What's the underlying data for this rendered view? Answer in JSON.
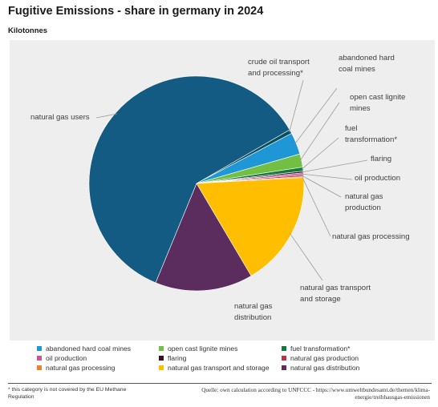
{
  "title": "Fugitive Emissions - share in germany in 2024",
  "subtitle": "Kilotonnes",
  "chart_data": {
    "type": "pie",
    "title": "Fugitive Emissions - share in germany in 2024",
    "unit": "Kilotonnes",
    "legend_position": "bottom",
    "categories": [
      "crude oil transport and processing*",
      "abandoned hard coal mines",
      "open cast lignite mines",
      "fuel transformation*",
      "flaring",
      "oil production",
      "natural gas production",
      "natural gas processing",
      "natural gas transport and storage",
      "natural gas distribution",
      "natural gas users"
    ],
    "slice_labels": [
      [
        "crude oil transport",
        "and processing*"
      ],
      [
        "abandoned hard",
        "coal mines"
      ],
      [
        "open cast lignite",
        "mines"
      ],
      [
        "fuel",
        "transformation*"
      ],
      [
        "flaring"
      ],
      [
        "oil production"
      ],
      [
        "natural gas",
        "production"
      ],
      [
        "natural gas processing"
      ],
      [
        "natural gas transport",
        "and storage"
      ],
      [
        "natural gas",
        "distribution"
      ],
      [
        "natural gas users"
      ]
    ],
    "values": [
      0.6,
      3.3,
      2.0,
      0.6,
      0.25,
      0.3,
      0.25,
      0.15,
      17.4,
      14.7,
      60.45
    ],
    "value_note": "approximate shares in percent, read from slice angles",
    "colors": [
      "#0a4e5a",
      "#1f96d6",
      "#72bf44",
      "#127a3a",
      "#3a1027",
      "#c6569a",
      "#c22e4a",
      "#e4862b",
      "#ffbe00",
      "#5a2d5e",
      "#135b82"
    ],
    "legend": [
      {
        "label": "abandoned hard coal mines",
        "color": "#1f96d6"
      },
      {
        "label": "open cast lignite mines",
        "color": "#72bf44"
      },
      {
        "label": "fuel transformation*",
        "color": "#127a3a"
      },
      {
        "label": "oil production",
        "color": "#c6569a"
      },
      {
        "label": "flaring",
        "color": "#3a1027"
      },
      {
        "label": "natural gas production",
        "color": "#c22e4a"
      },
      {
        "label": "natural gas processing",
        "color": "#e4862b"
      },
      {
        "label": "natural gas transport and storage",
        "color": "#ffbe00"
      },
      {
        "label": "natural gas distribution",
        "color": "#5a2d5e"
      }
    ]
  },
  "footer": {
    "footnote": "* this category is not covered by the EU Methane Regulation",
    "source": "Quelle: own calculation according to UNFCCC - https://www.umweltbundesamt.de/themen/klima-energie/treibhausgas-emissionen"
  }
}
